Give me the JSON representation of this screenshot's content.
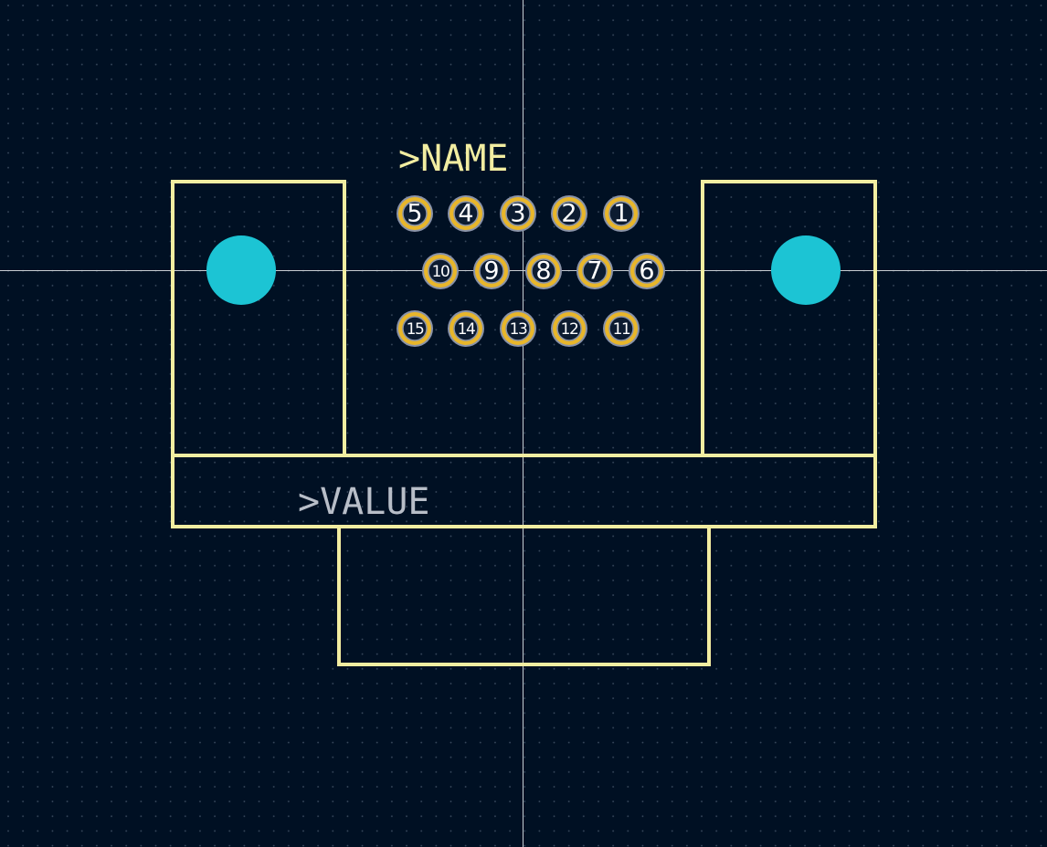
{
  "footprint": {
    "name_label": ">NAME",
    "value_label": ">VALUE"
  },
  "pads": [
    {
      "number": "1"
    },
    {
      "number": "2"
    },
    {
      "number": "3"
    },
    {
      "number": "4"
    },
    {
      "number": "5"
    },
    {
      "number": "6"
    },
    {
      "number": "7"
    },
    {
      "number": "8"
    },
    {
      "number": "9"
    },
    {
      "number": "10"
    },
    {
      "number": "11"
    },
    {
      "number": "12"
    },
    {
      "number": "13"
    },
    {
      "number": "14"
    },
    {
      "number": "15"
    }
  ],
  "mounting_holes": [
    {
      "name": "mounting-hole-left"
    },
    {
      "name": "mounting-hole-right"
    }
  ],
  "colors": {
    "background": "#001023",
    "grid_dot": "#3a4a5e",
    "crosshair": "#c8ccd2",
    "silkscreen": "#f2eda1",
    "pad_copper": "#e8b62a",
    "pad_ring": "#8a93a8",
    "pad_hole": "#0c1b30",
    "pad_label": "#ffffff",
    "npth_hole": "#1cc4d4",
    "name_text": "#f2eda1",
    "value_text": "#b8bec8"
  }
}
